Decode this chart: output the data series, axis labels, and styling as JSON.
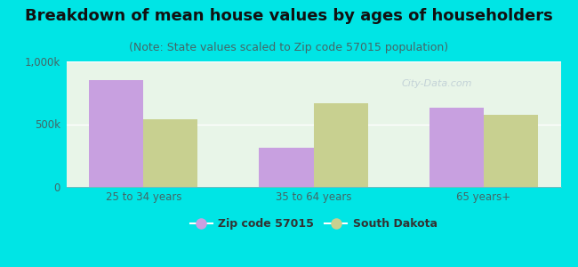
{
  "title": "Breakdown of mean house values by ages of householders",
  "subtitle": "(Note: State values scaled to Zip code 57015 population)",
  "categories": [
    "25 to 34 years",
    "35 to 64 years",
    "65 years+"
  ],
  "zip_values": [
    850000,
    310000,
    630000
  ],
  "state_values": [
    540000,
    670000,
    575000
  ],
  "zip_color": "#c8a0e0",
  "state_color": "#c8d090",
  "background_color": "#00e5e5",
  "plot_bg": "#e8f5e8",
  "ylim": [
    0,
    1000000
  ],
  "ytick_labels": [
    "0",
    "500k",
    "1,000k"
  ],
  "legend_zip": "Zip code 57015",
  "legend_state": "South Dakota",
  "bar_width": 0.32,
  "title_fontsize": 13,
  "subtitle_fontsize": 9,
  "axis_fontsize": 8.5,
  "legend_fontsize": 9,
  "title_color": "#111111",
  "subtitle_color": "#446666",
  "tick_color": "#446666",
  "watermark": "City-Data.com"
}
